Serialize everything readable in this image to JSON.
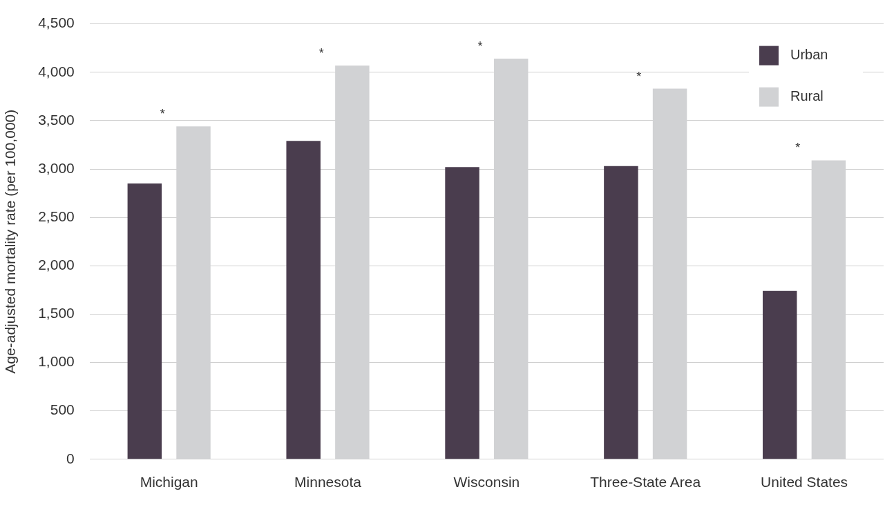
{
  "chart_data": {
    "type": "bar",
    "ylabel": "Age-adjusted mortality rate (per 100,000)",
    "categories": [
      "Michigan",
      "Minnesota",
      "Wisconsin",
      "Three-State Area",
      "United States"
    ],
    "series": [
      {
        "name": "Urban",
        "color": "#4a3d4e",
        "values": [
          2850,
          3290,
          3020,
          3030,
          1740
        ]
      },
      {
        "name": "Rural",
        "color": "#d1d2d4",
        "values": [
          3440,
          4070,
          4140,
          3830,
          3090
        ]
      }
    ],
    "ylim": [
      0,
      4500
    ],
    "yticks": [
      0,
      500,
      {
        "value": 1000,
        "label": "1,000"
      },
      {
        "value": 1500,
        "label": "1,500"
      },
      {
        "value": 2000,
        "label": "2,000"
      },
      {
        "value": 2500,
        "label": "2,500"
      },
      {
        "value": 3000,
        "label": "3,000"
      },
      {
        "value": 3500,
        "label": "3,500"
      },
      {
        "value": 4000,
        "label": "4,000"
      },
      {
        "value": 4500,
        "label": "4,500"
      }
    ],
    "grid": "y",
    "legend": "top right",
    "annotations": [
      "*",
      "*",
      "*",
      "*",
      "*"
    ]
  }
}
